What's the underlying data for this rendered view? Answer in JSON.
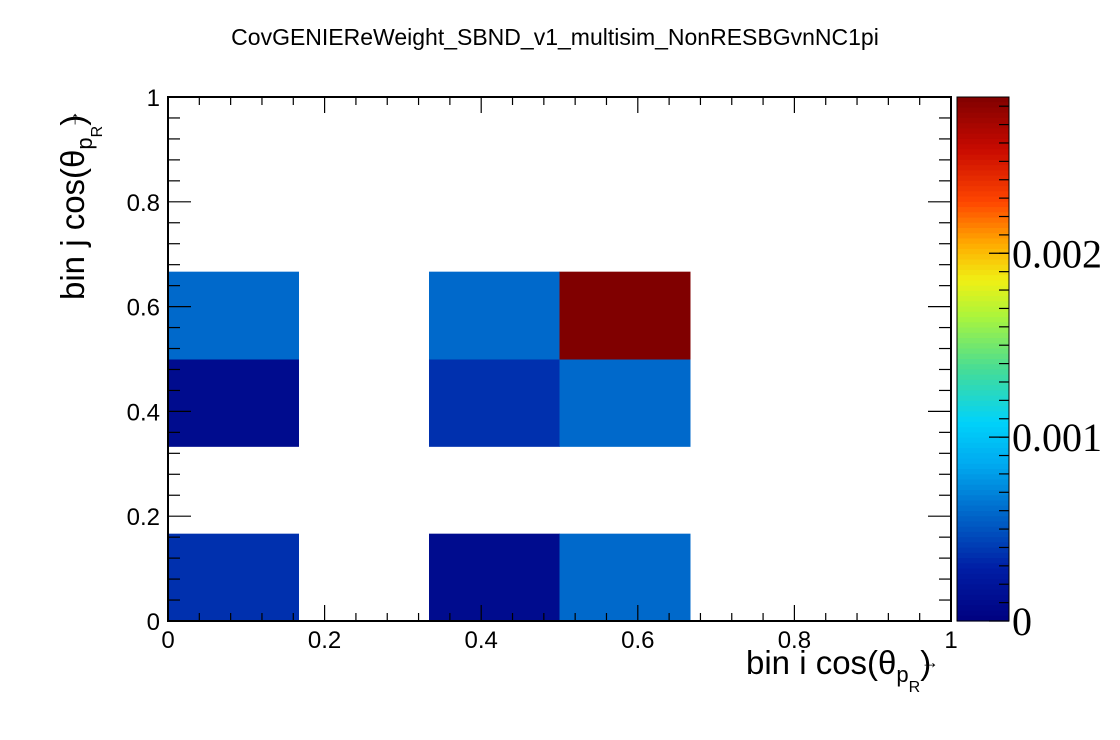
{
  "chart_data": {
    "type": "heatmap",
    "title": "CovGENIEReWeight_SBND_v1_multisim_NonRESBGvnNC1pi",
    "xlabel": {
      "main": "bin i cos(θ",
      "sub": "p",
      "subsub": "R",
      "close": ")"
    },
    "ylabel": {
      "main": "bin j cos(θ",
      "sub": "p",
      "subsub": "R",
      "close": ")"
    },
    "xlim": [
      0,
      1
    ],
    "ylim": [
      0,
      1
    ],
    "x_ticks": [
      "0",
      "0.2",
      "0.4",
      "0.6",
      "0.8",
      "1"
    ],
    "y_ticks": [
      "0",
      "0.2",
      "0.4",
      "0.6",
      "0.8",
      "1"
    ],
    "nbins_x": 6,
    "nbins_y": 6,
    "zlim": [
      0,
      0.00285
    ],
    "z_ticks": [
      "0",
      "0.001",
      "0.002"
    ],
    "palette": "rainbow",
    "cells": [
      {
        "i": 0,
        "j": 0,
        "value": 0.00036
      },
      {
        "i": 2,
        "j": 0,
        "value": 0.00011
      },
      {
        "i": 3,
        "j": 0,
        "value": 0.00059
      },
      {
        "i": 0,
        "j": 2,
        "value": 0.00011
      },
      {
        "i": 2,
        "j": 2,
        "value": 0.00036
      },
      {
        "i": 3,
        "j": 2,
        "value": 0.00059
      },
      {
        "i": 0,
        "j": 3,
        "value": 0.00059
      },
      {
        "i": 2,
        "j": 3,
        "value": 0.00059
      },
      {
        "i": 3,
        "j": 3,
        "value": 0.00285
      }
    ]
  }
}
